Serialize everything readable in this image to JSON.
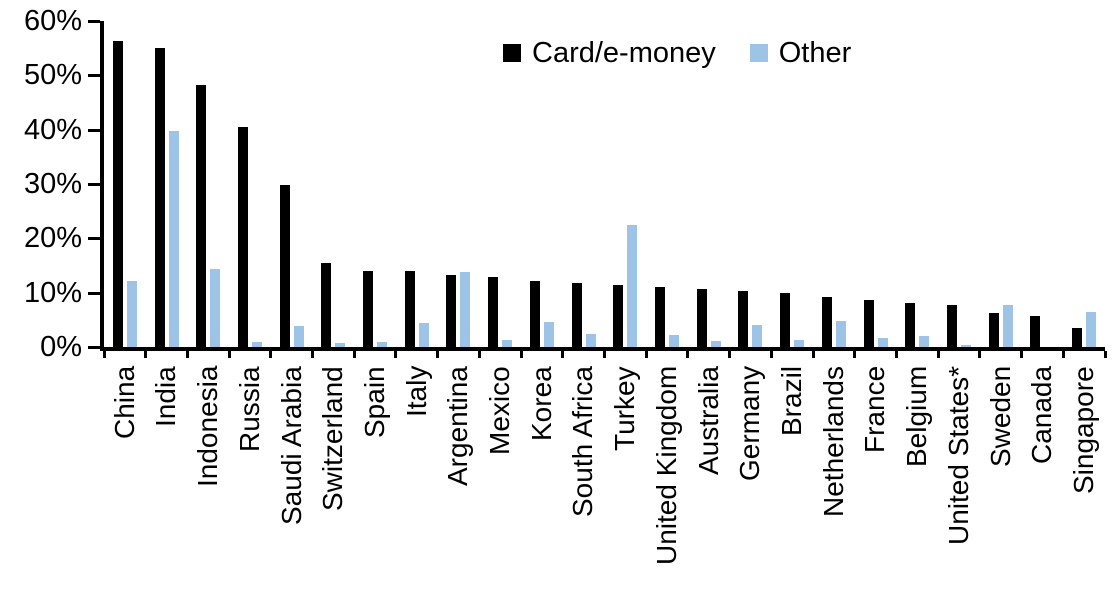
{
  "chart_data": {
    "type": "bar",
    "title": "",
    "legend_position": "top",
    "grid": false,
    "categories": [
      "China",
      "India",
      "Indonesia",
      "Russia",
      "Saudi Arabia",
      "Switzerland",
      "Spain",
      "Italy",
      "Argentina",
      "Mexico",
      "Korea",
      "South Africa",
      "Turkey",
      "United Kingdom",
      "Australia",
      "Germany",
      "Brazil",
      "Netherlands",
      "France",
      "Belgium",
      "United States*",
      "Sweden",
      "Canada",
      "Singapore"
    ],
    "series": [
      {
        "name": "Card/e-money",
        "color": "#000000",
        "values": [
          56.3,
          55.1,
          48.3,
          40.5,
          29.8,
          15.5,
          14.0,
          14.0,
          13.3,
          12.9,
          12.1,
          11.7,
          11.5,
          11.0,
          10.6,
          10.4,
          9.9,
          9.2,
          8.6,
          8.1,
          7.8,
          6.3,
          5.8,
          3.5
        ]
      },
      {
        "name": "Other",
        "color": "#9DC3E6",
        "values": [
          12.2,
          39.7,
          14.3,
          0.9,
          3.9,
          0.7,
          1.0,
          4.5,
          13.8,
          1.3,
          4.6,
          2.4,
          22.4,
          2.3,
          1.1,
          4.0,
          1.2,
          4.8,
          1.6,
          2.1,
          0.3,
          7.8,
          0,
          6.4
        ]
      }
    ],
    "y_axis": {
      "min": 0,
      "max": 60,
      "step": 10,
      "tick_labels": [
        "60%",
        "50%",
        "40%",
        "30%",
        "20%",
        "10%",
        "0%"
      ]
    }
  }
}
